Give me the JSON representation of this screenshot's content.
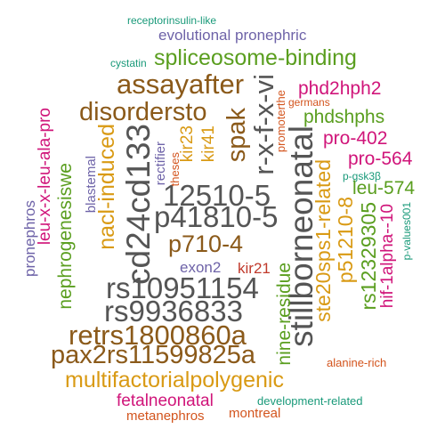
{
  "colors": {
    "gray": "#555555",
    "brown": "#8b5a1a",
    "gold": "#d99a14",
    "green": "#5a9e1f",
    "magenta": "#d0157a",
    "purple": "#6e63a8",
    "teal": "#1a9a7a",
    "orange": "#d3541d",
    "red": "#c0392b"
  },
  "words": [
    {
      "id": "w01",
      "text": "receptorinsulin-like",
      "color": "#1a9a7a"
    },
    {
      "id": "w02",
      "text": "evolutional pronephric",
      "color": "#6e63a8"
    },
    {
      "id": "w03",
      "text": "cystatin",
      "color": "#1a9a7a"
    },
    {
      "id": "w04",
      "text": "spliceosome-binding",
      "color": "#5a9e1f"
    },
    {
      "id": "w05",
      "text": "assayafter",
      "color": "#8b5a1a"
    },
    {
      "id": "w06",
      "text": "r-x-f-x-vi",
      "color": "#555555"
    },
    {
      "id": "w07",
      "text": "promoterthe",
      "color": "#d3541d"
    },
    {
      "id": "w08",
      "text": "germans",
      "color": "#d3541d"
    },
    {
      "id": "w09",
      "text": "phd2hph2",
      "color": "#d0157a"
    },
    {
      "id": "w10",
      "text": "disordersto",
      "color": "#8b5a1a"
    },
    {
      "id": "w11",
      "text": "spak",
      "color": "#8b5a1a"
    },
    {
      "id": "w12",
      "text": "phdshphs",
      "color": "#5a9e1f"
    },
    {
      "id": "w13",
      "text": "leu-x-x-leu-ala-pro",
      "color": "#d0157a"
    },
    {
      "id": "w14",
      "text": "pronephros",
      "color": "#6e63a8"
    },
    {
      "id": "w15",
      "text": "nephrogenesiswe",
      "color": "#5a9e1f"
    },
    {
      "id": "w16",
      "text": "blastemal",
      "color": "#6e63a8"
    },
    {
      "id": "w17",
      "text": "nacl-induced",
      "color": "#d99a14"
    },
    {
      "id": "w18",
      "text": "cd24cd133",
      "color": "#555555"
    },
    {
      "id": "w19",
      "text": "rectifier",
      "color": "#6e63a8"
    },
    {
      "id": "w20",
      "text": "theses",
      "color": "#d3541d"
    },
    {
      "id": "w21",
      "text": "kir23",
      "color": "#d99a14"
    },
    {
      "id": "w22",
      "text": "kir41",
      "color": "#d99a14"
    },
    {
      "id": "w23",
      "text": "stillborneonatal",
      "color": "#555555"
    },
    {
      "id": "w24",
      "text": "pro-402",
      "color": "#d0157a"
    },
    {
      "id": "w25",
      "text": "pro-564",
      "color": "#d0157a"
    },
    {
      "id": "w26",
      "text": "p-gsk3β",
      "color": "#1a9a7a"
    },
    {
      "id": "w27",
      "text": "leu-574",
      "color": "#5a9e1f"
    },
    {
      "id": "w28",
      "text": "12510-5",
      "color": "#555555"
    },
    {
      "id": "w29",
      "text": "p41810-5",
      "color": "#555555"
    },
    {
      "id": "w30",
      "text": "ste20sps1-related",
      "color": "#d99a14"
    },
    {
      "id": "w31",
      "text": "p51210-8",
      "color": "#d99a14"
    },
    {
      "id": "w32",
      "text": "rs12329305",
      "color": "#5a9e1f"
    },
    {
      "id": "w33",
      "text": "hif-1alpha--10",
      "color": "#d0157a"
    },
    {
      "id": "w34",
      "text": "p-values001",
      "color": "#1a9a7a"
    },
    {
      "id": "w35",
      "text": "p710-4",
      "color": "#8b5a1a"
    },
    {
      "id": "w36",
      "text": "exon2",
      "color": "#6e63a8"
    },
    {
      "id": "w37",
      "text": "kir21",
      "color": "#c0392b"
    },
    {
      "id": "w38",
      "text": "rs10951154",
      "color": "#555555"
    },
    {
      "id": "w39",
      "text": "nine-residue",
      "color": "#5a9e1f"
    },
    {
      "id": "w40",
      "text": "rs9936833",
      "color": "#555555"
    },
    {
      "id": "w41",
      "text": "retrs1800860a",
      "color": "#8b5a1a"
    },
    {
      "id": "w42",
      "text": "pax2rs11599825a",
      "color": "#8b5a1a"
    },
    {
      "id": "w43",
      "text": "alanine-rich",
      "color": "#d3541d"
    },
    {
      "id": "w44",
      "text": "multifactorialpolygenic",
      "color": "#d99a14"
    },
    {
      "id": "w45",
      "text": "fetalneonatal",
      "color": "#d0157a"
    },
    {
      "id": "w46",
      "text": "development-related",
      "color": "#1a9a7a"
    },
    {
      "id": "w47",
      "text": "metanephros",
      "color": "#d3541d"
    },
    {
      "id": "w48",
      "text": "montreal",
      "color": "#d3541d"
    }
  ]
}
